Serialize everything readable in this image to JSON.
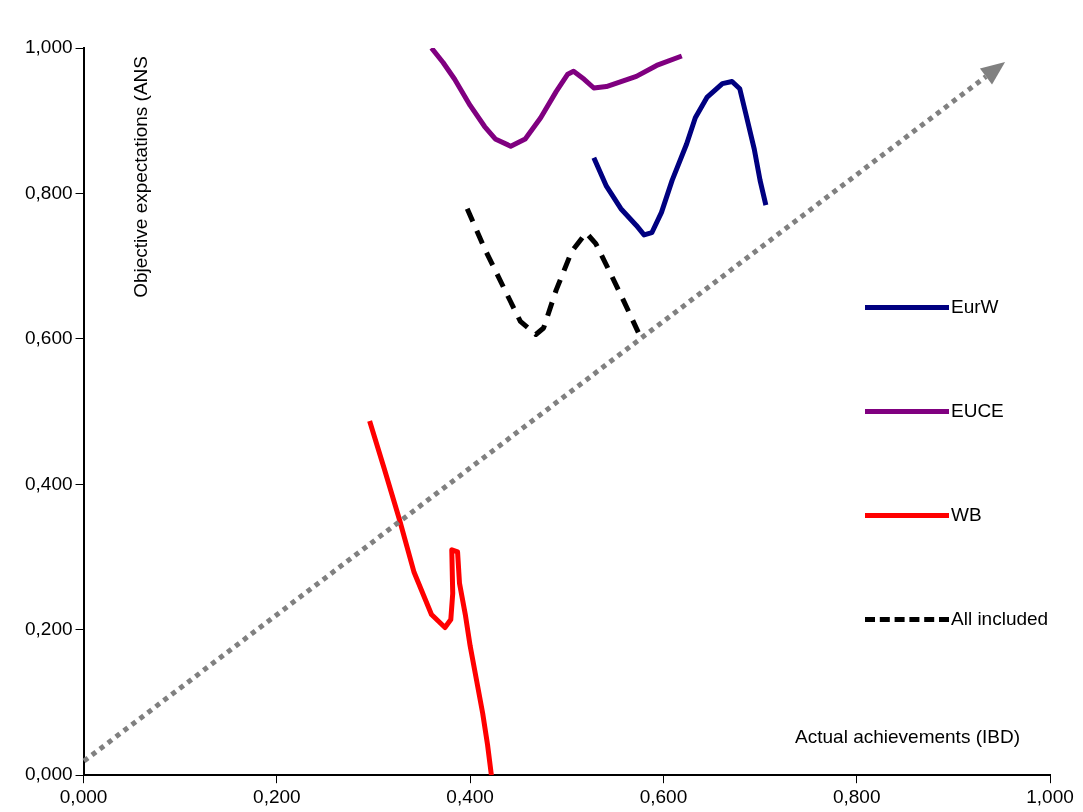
{
  "chart_data": {
    "type": "line",
    "xlabel": "Actual achievements (IBD)",
    "ylabel": "Objective expectations (ANS",
    "xlim": [
      0,
      1
    ],
    "ylim": [
      0,
      1
    ],
    "xticks": [
      {
        "value": 0,
        "label": "0,000"
      },
      {
        "value": 0.2,
        "label": "0,200"
      },
      {
        "value": 0.4,
        "label": "0,400"
      },
      {
        "value": 0.6,
        "label": "0,600"
      },
      {
        "value": 0.8,
        "label": "0,800"
      },
      {
        "value": 1,
        "label": "1,000"
      }
    ],
    "yticks": [
      {
        "value": 0,
        "label": "0,000"
      },
      {
        "value": 0.2,
        "label": "0,200"
      },
      {
        "value": 0.4,
        "label": "0,400"
      },
      {
        "value": 0.6,
        "label": "0,600"
      },
      {
        "value": 0.8,
        "label": "0,800"
      },
      {
        "value": 1,
        "label": "1,000"
      }
    ],
    "grid": false,
    "legend": "right",
    "marker": "none",
    "series": [
      {
        "name": "EurW",
        "color": "#000080",
        "line_style": "solid",
        "x": [
          0.528,
          0.541,
          0.556,
          0.572,
          0.58,
          0.588,
          0.598,
          0.609,
          0.624,
          0.633,
          0.645,
          0.661,
          0.671,
          0.679,
          0.685,
          0.694,
          0.7,
          0.706
        ],
        "values": [
          0.849,
          0.81,
          0.779,
          0.756,
          0.743,
          0.746,
          0.774,
          0.818,
          0.868,
          0.904,
          0.932,
          0.951,
          0.954,
          0.944,
          0.911,
          0.861,
          0.818,
          0.784
        ]
      },
      {
        "name": "EUCE",
        "color": "#800080",
        "line_style": "solid",
        "x": [
          0.36,
          0.372,
          0.384,
          0.4,
          0.415,
          0.426,
          0.442,
          0.457,
          0.473,
          0.489,
          0.501,
          0.507,
          0.518,
          0.528,
          0.541,
          0.572,
          0.593,
          0.619
        ],
        "values": [
          1.0,
          0.98,
          0.957,
          0.921,
          0.892,
          0.875,
          0.865,
          0.875,
          0.904,
          0.94,
          0.964,
          0.968,
          0.957,
          0.945,
          0.947,
          0.961,
          0.976,
          0.989
        ]
      },
      {
        "name": "WB",
        "color": "#ff0000",
        "line_style": "solid",
        "x": [
          0.296,
          0.311,
          0.327,
          0.342,
          0.36,
          0.374,
          0.38,
          0.382,
          0.381,
          0.387,
          0.389,
          0.395,
          0.4,
          0.407,
          0.413,
          0.418,
          0.422
        ],
        "values": [
          0.487,
          0.422,
          0.351,
          0.279,
          0.221,
          0.203,
          0.214,
          0.25,
          0.31,
          0.307,
          0.264,
          0.221,
          0.178,
          0.128,
          0.085,
          0.042,
          0.0
        ]
      },
      {
        "name": "All included",
        "color": "#000000",
        "line_style": "dashed",
        "x": [
          0.397,
          0.415,
          0.436,
          0.452,
          0.468,
          0.476,
          0.489,
          0.505,
          0.52,
          0.53,
          0.546,
          0.559,
          0.574
        ],
        "values": [
          0.779,
          0.724,
          0.667,
          0.624,
          0.606,
          0.615,
          0.667,
          0.72,
          0.746,
          0.731,
          0.688,
          0.652,
          0.609
        ]
      }
    ]
  }
}
